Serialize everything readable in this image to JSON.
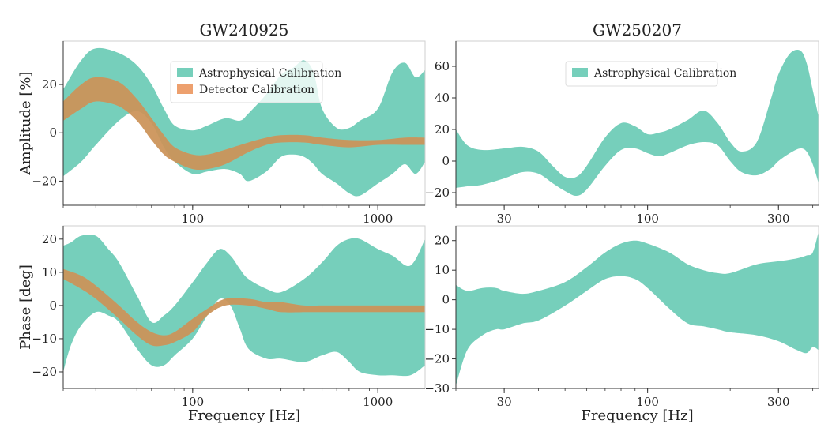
{
  "colors": {
    "astro": "#76cfbb",
    "detector": "#eda06e",
    "overlap": "#b48b48"
  },
  "chart_data": [
    {
      "id": "gw240925_amp",
      "type": "area",
      "title": "GW240925",
      "xlabel": "",
      "ylabel": "Amplitude [%]",
      "xscale": "log",
      "xlim": [
        20,
        1800
      ],
      "ylim": [
        -30,
        38
      ],
      "xticks": [
        {
          "value": 100,
          "label": "100"
        },
        {
          "value": 1000,
          "label": "1000"
        }
      ],
      "yticks": [
        {
          "value": -20,
          "label": "−20"
        },
        {
          "value": 0,
          "label": "0"
        },
        {
          "value": 20,
          "label": "20"
        }
      ],
      "legend": {
        "position": "top-center",
        "entries": [
          "Astrophysical Calibration",
          "Detector Calibration"
        ]
      },
      "series": [
        {
          "name": "Astrophysical Calibration",
          "color_key": "astro",
          "x": [
            20,
            25,
            30,
            40,
            50,
            60,
            70,
            80,
            100,
            120,
            150,
            180,
            200,
            250,
            300,
            350,
            400,
            450,
            500,
            600,
            700,
            800,
            1000,
            1200,
            1400,
            1600,
            1800
          ],
          "upper": [
            18,
            30,
            35,
            33,
            28,
            20,
            10,
            3,
            1,
            3,
            6,
            5,
            8,
            16,
            24,
            27,
            30,
            25,
            10,
            2,
            2,
            5,
            10,
            25,
            29,
            23,
            26
          ],
          "lower": [
            -18,
            -12,
            -5,
            5,
            9,
            4,
            -6,
            -12,
            -17,
            -16,
            -15,
            -17,
            -20,
            -16,
            -10,
            -9,
            -10,
            -13,
            -17,
            -21,
            -25,
            -26,
            -21,
            -17,
            -13,
            -17,
            -12
          ]
        },
        {
          "name": "Detector Calibration",
          "color_key": "detector",
          "x": [
            20,
            25,
            30,
            40,
            50,
            60,
            70,
            80,
            100,
            120,
            150,
            200,
            250,
            300,
            400,
            500,
            700,
            1000,
            1400,
            1800
          ],
          "upper": [
            13,
            20,
            23,
            21,
            14,
            6,
            -1,
            -6,
            -9,
            -9,
            -7,
            -4,
            -2,
            -1,
            -1,
            -2,
            -3,
            -3,
            -2,
            -2
          ],
          "lower": [
            5,
            10,
            13,
            11,
            5,
            -3,
            -9,
            -12,
            -15,
            -15,
            -13,
            -8,
            -5,
            -4,
            -4,
            -5,
            -6,
            -5,
            -5,
            -5
          ]
        }
      ]
    },
    {
      "id": "gw250207_amp",
      "type": "area",
      "title": "GW250207",
      "xlabel": "",
      "ylabel": "",
      "xscale": "log",
      "xlim": [
        20,
        420
      ],
      "ylim": [
        -28,
        76
      ],
      "xticks": [
        {
          "value": 30,
          "label": "30"
        },
        {
          "value": 100,
          "label": "100"
        },
        {
          "value": 300,
          "label": "300"
        }
      ],
      "yticks": [
        {
          "value": -20,
          "label": "−20"
        },
        {
          "value": 0,
          "label": "0"
        },
        {
          "value": 20,
          "label": "20"
        },
        {
          "value": 40,
          "label": "40"
        },
        {
          "value": 60,
          "label": "60"
        }
      ],
      "legend": {
        "position": "top-center",
        "entries": [
          "Astrophysical Calibration"
        ]
      },
      "series": [
        {
          "name": "Astrophysical Calibration",
          "color_key": "astro",
          "x": [
            20,
            22,
            25,
            30,
            35,
            40,
            45,
            50,
            55,
            60,
            70,
            80,
            90,
            100,
            110,
            120,
            140,
            160,
            180,
            200,
            220,
            250,
            280,
            300,
            330,
            360,
            380,
            400,
            420
          ],
          "upper": [
            20,
            10,
            7,
            8,
            9,
            6,
            -3,
            -10,
            -10,
            -3,
            15,
            24,
            22,
            17,
            18,
            20,
            26,
            32,
            24,
            12,
            6,
            12,
            38,
            55,
            68,
            70,
            62,
            45,
            28
          ],
          "lower": [
            -17,
            -16,
            -15,
            -11,
            -7,
            -8,
            -14,
            -19,
            -22,
            -18,
            -3,
            7,
            8,
            5,
            3,
            5,
            10,
            12,
            10,
            0,
            -7,
            -9,
            -5,
            0,
            5,
            8,
            6,
            -2,
            -14
          ]
        }
      ]
    },
    {
      "id": "gw240925_phase",
      "type": "area",
      "title": "",
      "xlabel": "Frequency [Hz]",
      "ylabel": "Phase [deg]",
      "xscale": "log",
      "xlim": [
        20,
        1800
      ],
      "ylim": [
        -25,
        24
      ],
      "xticks": [
        {
          "value": 100,
          "label": "100"
        },
        {
          "value": 1000,
          "label": "1000"
        }
      ],
      "yticks": [
        {
          "value": -20,
          "label": "−20"
        },
        {
          "value": -10,
          "label": "−10"
        },
        {
          "value": 0,
          "label": "0"
        },
        {
          "value": 10,
          "label": "10"
        },
        {
          "value": 20,
          "label": "20"
        }
      ],
      "series": [
        {
          "name": "Astrophysical Calibration",
          "color_key": "astro",
          "x": [
            20,
            22,
            25,
            30,
            35,
            40,
            50,
            60,
            70,
            80,
            100,
            120,
            140,
            160,
            180,
            200,
            250,
            300,
            400,
            500,
            600,
            700,
            800,
            1000,
            1200,
            1500,
            1800
          ],
          "upper": [
            18,
            19,
            21,
            21,
            17,
            13,
            3,
            -5,
            -3,
            0,
            7,
            13,
            17,
            15,
            11,
            8,
            5,
            4,
            8,
            13,
            18,
            20,
            20,
            17,
            15,
            12,
            20
          ],
          "lower": [
            -20,
            -12,
            -6,
            -2,
            -3,
            -5,
            -13,
            -18,
            -18,
            -15,
            -10,
            -3,
            2,
            0,
            -7,
            -13,
            -16,
            -16,
            -17,
            -15,
            -14,
            -17,
            -20,
            -21,
            -21,
            -21,
            -18
          ]
        },
        {
          "name": "Detector Calibration",
          "color_key": "detector",
          "x": [
            20,
            25,
            30,
            40,
            50,
            60,
            70,
            80,
            100,
            120,
            150,
            200,
            250,
            300,
            400,
            500,
            700,
            1000,
            1400,
            1800
          ],
          "upper": [
            11,
            9,
            6,
            0,
            -5,
            -8,
            -9,
            -8,
            -4,
            -1,
            2,
            2,
            1,
            1,
            0,
            0,
            0,
            0,
            0,
            0
          ],
          "lower": [
            8,
            5,
            2,
            -4,
            -9,
            -12,
            -12,
            -11,
            -8,
            -3,
            0,
            0,
            -1,
            -2,
            -2,
            -2,
            -2,
            -2,
            -2,
            -2
          ]
        }
      ]
    },
    {
      "id": "gw250207_phase",
      "type": "area",
      "title": "",
      "xlabel": "Frequency [Hz]",
      "ylabel": "",
      "xscale": "log",
      "xlim": [
        20,
        420
      ],
      "ylim": [
        -30,
        25
      ],
      "xticks": [
        {
          "value": 30,
          "label": "30"
        },
        {
          "value": 100,
          "label": "100"
        },
        {
          "value": 300,
          "label": "300"
        }
      ],
      "yticks": [
        {
          "value": -30,
          "label": "−30"
        },
        {
          "value": -20,
          "label": "−20"
        },
        {
          "value": -10,
          "label": "−10"
        },
        {
          "value": 0,
          "label": "0"
        },
        {
          "value": 10,
          "label": "10"
        },
        {
          "value": 20,
          "label": "20"
        }
      ],
      "series": [
        {
          "name": "Astrophysical Calibration",
          "color_key": "astro",
          "x": [
            20,
            22,
            25,
            28,
            30,
            35,
            40,
            50,
            60,
            70,
            80,
            90,
            100,
            120,
            140,
            160,
            180,
            200,
            250,
            300,
            350,
            380,
            400,
            420
          ],
          "upper": [
            5,
            3,
            4,
            4,
            3,
            2,
            3,
            6,
            11,
            16,
            19,
            20,
            19,
            16,
            12,
            10,
            9,
            9,
            12,
            13,
            14,
            15,
            16,
            23
          ],
          "lower": [
            -29,
            -17,
            -12,
            -10,
            -10,
            -8,
            -7,
            -2,
            3,
            7,
            8,
            7,
            4,
            -3,
            -8,
            -9,
            -10,
            -11,
            -12,
            -14,
            -17,
            -18,
            -16,
            -17
          ]
        }
      ]
    }
  ]
}
